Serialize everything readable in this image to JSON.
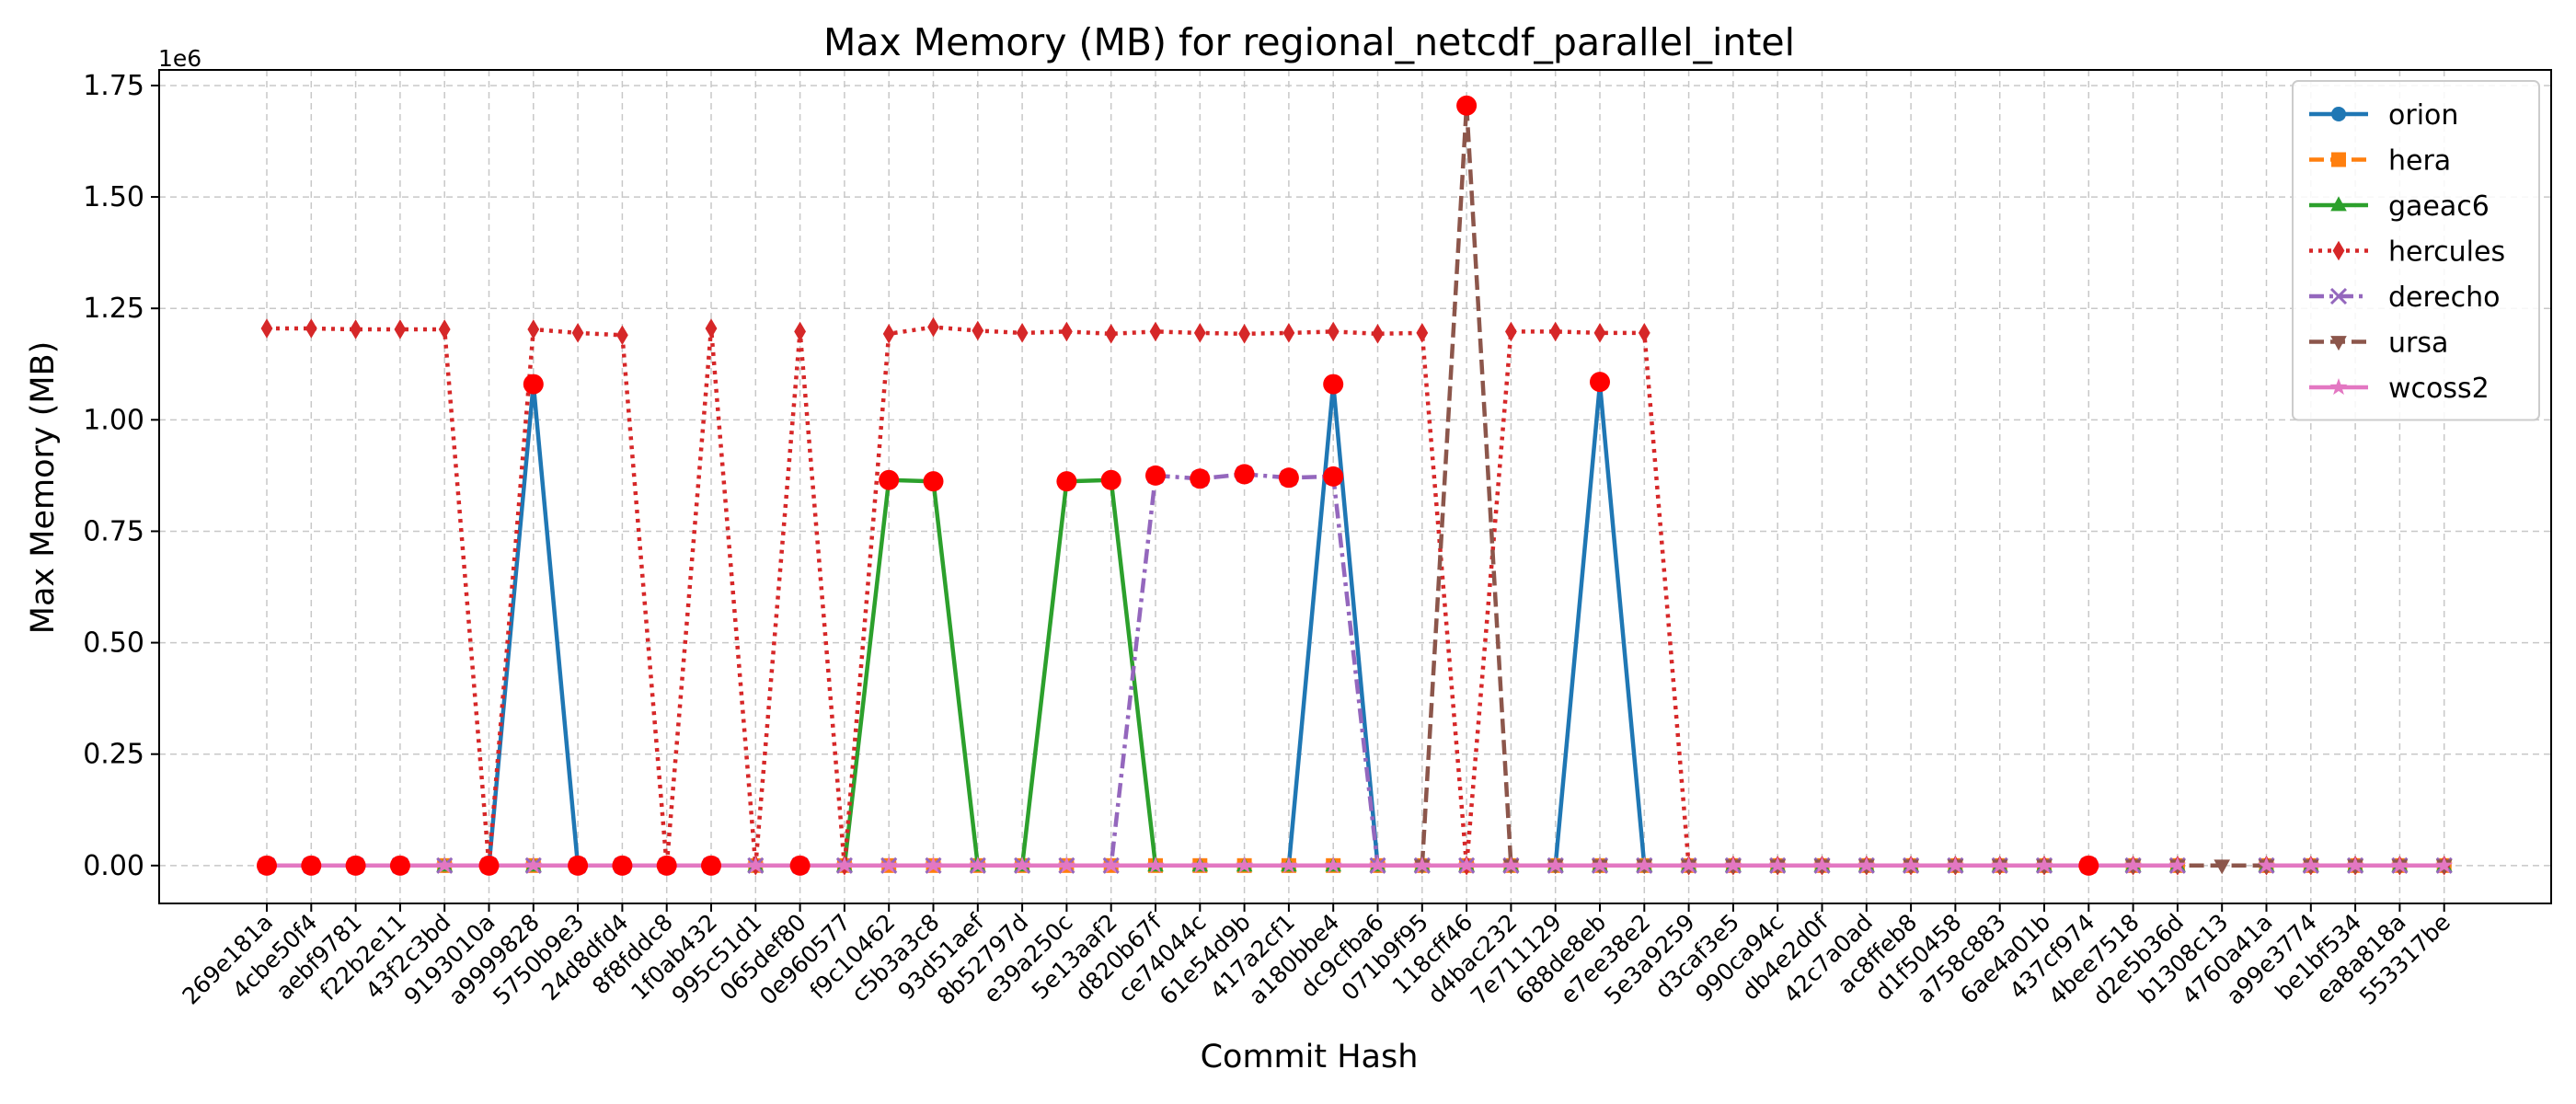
{
  "chart_data": {
    "type": "line",
    "title": "Max Memory (MB) for regional_netcdf_parallel_intel",
    "xlabel": "Commit Hash",
    "ylabel": "Max Memory (MB)",
    "y_offset_label": "1e6",
    "ylim": [
      -85000,
      1785000
    ],
    "y_ticks": [
      0,
      250000,
      500000,
      750000,
      1000000,
      1250000,
      1500000,
      1750000
    ],
    "y_tick_labels": [
      "0.00",
      "0.25",
      "0.50",
      "0.75",
      "1.00",
      "1.25",
      "1.50",
      "1.75"
    ],
    "grid": true,
    "legend_position": "top-right",
    "categories": [
      "269e181a",
      "4cbe50f4",
      "aebf9781",
      "f22b2e11",
      "43f2c3bd",
      "9193010a",
      "a9999828",
      "5750b9e3",
      "24d8dfd4",
      "8f8fddc8",
      "1f0ab432",
      "995c51d1",
      "065def80",
      "0e960577",
      "f9c10462",
      "c5b3a3c8",
      "93d51aef",
      "8b52797d",
      "e39a250c",
      "5e13aaf2",
      "d820b67f",
      "ce74044c",
      "61e54d9b",
      "417a2cf1",
      "a180bbe4",
      "dc9cfba6",
      "071b9f95",
      "118cff46",
      "d4bac232",
      "7e711129",
      "688de8eb",
      "e7ee38e2",
      "5e3a9259",
      "d3caf3e5",
      "990ca94c",
      "db4e2d0f",
      "42c7a0ad",
      "ac8ffeb8",
      "d1f50458",
      "a758c883",
      "6ae4a01b",
      "437cf974",
      "4bee7518",
      "d2e5b36d",
      "b1308c13",
      "4760a41a",
      "a99e3774",
      "be1bf534",
      "ea8a818a",
      "553317be"
    ],
    "series": [
      {
        "name": "orion",
        "color": "#1f77b4",
        "marker": "circle",
        "dash": "solid",
        "values": [
          0,
          0,
          0,
          0,
          0,
          0,
          1080000,
          0,
          0,
          0,
          0,
          null,
          null,
          null,
          null,
          null,
          null,
          null,
          null,
          null,
          null,
          null,
          null,
          0,
          1080000,
          0,
          null,
          null,
          null,
          0,
          1080000,
          0,
          0,
          0,
          0,
          0,
          0,
          0,
          0,
          0,
          0,
          0,
          0,
          0,
          null,
          0,
          0,
          0,
          0,
          0
        ]
      },
      {
        "name": "hera",
        "color": "#ff7f0e",
        "marker": "square",
        "dash": "dashed",
        "values": [
          0,
          0,
          0,
          0,
          0,
          0,
          0,
          0,
          0,
          0,
          0,
          0,
          0,
          0,
          0,
          0,
          0,
          0,
          0,
          0,
          0,
          0,
          0,
          0,
          0,
          0,
          0,
          0,
          0,
          0,
          0,
          0,
          0,
          0,
          0,
          0,
          0,
          0,
          0,
          0,
          0,
          0,
          0,
          0,
          null,
          0,
          0,
          0,
          0,
          0
        ]
      },
      {
        "name": "gaeac6",
        "color": "#2ca02c",
        "marker": "triangle",
        "dash": "solid",
        "values": [
          0,
          0,
          0,
          0,
          0,
          0,
          0,
          0,
          0,
          0,
          0,
          0,
          0,
          0,
          865000,
          862000,
          0,
          0,
          862000,
          865000,
          0,
          0,
          0,
          0,
          0,
          0,
          0,
          0,
          0,
          0,
          0,
          0,
          0,
          0,
          0,
          0,
          0,
          0,
          0,
          0,
          0,
          0,
          0,
          0,
          null,
          0,
          0,
          0,
          0,
          0
        ]
      },
      {
        "name": "hercules",
        "color": "#d62728",
        "marker": "diamond",
        "dash": "dotted",
        "values": [
          1205000,
          1205000,
          1203000,
          1203000,
          1203000,
          0,
          1203000,
          1195000,
          1190000,
          0,
          1205000,
          0,
          1198000,
          0,
          1193000,
          1208000,
          1200000,
          1195000,
          1198000,
          1193000,
          1198000,
          1195000,
          1193000,
          1195000,
          1198000,
          1193000,
          1195000,
          0,
          1198000,
          1198000,
          1195000,
          1195000,
          0,
          0,
          0,
          0,
          0,
          0,
          0,
          0,
          0,
          0,
          0,
          0,
          null,
          0,
          0,
          0,
          0,
          0
        ]
      },
      {
        "name": "derecho",
        "color": "#9467bd",
        "marker": "x",
        "dash": "dashdot",
        "values": [
          0,
          0,
          0,
          0,
          0,
          0,
          0,
          0,
          0,
          0,
          0,
          0,
          0,
          0,
          0,
          0,
          0,
          0,
          0,
          0,
          875000,
          868000,
          878000,
          870000,
          873000,
          0,
          0,
          0,
          0,
          0,
          0,
          0,
          0,
          0,
          0,
          0,
          0,
          0,
          0,
          0,
          0,
          0,
          0,
          0,
          null,
          0,
          0,
          0,
          0,
          0
        ]
      },
      {
        "name": "ursa",
        "color": "#8c564b",
        "marker": "triangle-down",
        "dash": "dashed",
        "values": [
          null,
          null,
          null,
          null,
          null,
          null,
          null,
          null,
          null,
          null,
          null,
          null,
          null,
          null,
          null,
          null,
          null,
          null,
          null,
          null,
          null,
          null,
          null,
          null,
          null,
          null,
          0,
          1705000,
          0,
          0,
          0,
          0,
          0,
          0,
          0,
          0,
          0,
          0,
          0,
          0,
          0,
          0,
          0,
          0,
          0,
          0,
          0,
          0,
          0,
          0
        ]
      },
      {
        "name": "wcoss2",
        "color": "#e377c2",
        "marker": "star",
        "dash": "solid",
        "values": [
          0,
          0,
          0,
          0,
          0,
          0,
          0,
          0,
          0,
          0,
          0,
          0,
          0,
          0,
          0,
          0,
          0,
          0,
          0,
          0,
          0,
          0,
          0,
          0,
          0,
          0,
          0,
          0,
          0,
          0,
          0,
          0,
          0,
          0,
          0,
          0,
          0,
          0,
          0,
          0,
          0,
          0,
          0,
          0,
          null,
          0,
          0,
          0,
          0,
          0
        ]
      }
    ],
    "highlight_color": "#ff0000",
    "highlight_points": [
      [
        0,
        0
      ],
      [
        1,
        0
      ],
      [
        2,
        0
      ],
      [
        3,
        0
      ],
      [
        5,
        0
      ],
      [
        6,
        1080000
      ],
      [
        7,
        0
      ],
      [
        8,
        0
      ],
      [
        9,
        0
      ],
      [
        10,
        0
      ],
      [
        12,
        0
      ],
      [
        14,
        865000
      ],
      [
        15,
        862000
      ],
      [
        18,
        862000
      ],
      [
        19,
        865000
      ],
      [
        20,
        875000
      ],
      [
        21,
        868000
      ],
      [
        22,
        878000
      ],
      [
        23,
        870000
      ],
      [
        24,
        873000
      ],
      [
        24,
        1080000
      ],
      [
        27,
        1705000
      ],
      [
        30,
        1085000
      ],
      [
        41,
        0
      ]
    ]
  }
}
